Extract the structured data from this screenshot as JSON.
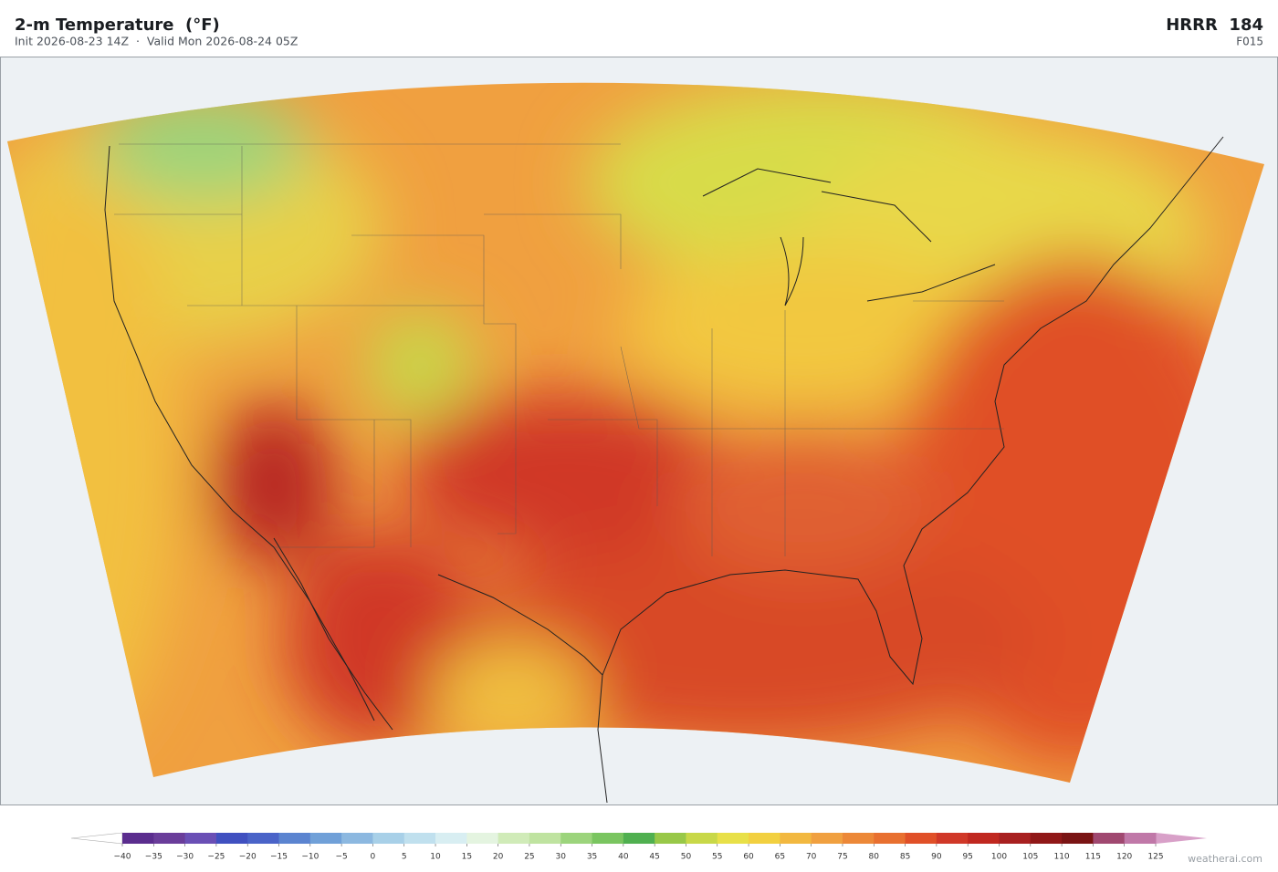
{
  "header": {
    "title": "2-m Temperature  (°F)",
    "subtitle": "Init 2026-08-23 14Z  ·  Valid Mon 2026-08-24 05Z",
    "model": "HRRR  184",
    "forecast_hour": "F015"
  },
  "colorbar": {
    "ticks": [
      {
        "value": -40,
        "label": "−40"
      },
      {
        "value": -35,
        "label": "−35"
      },
      {
        "value": -30,
        "label": "−30"
      },
      {
        "value": -25,
        "label": "−25"
      },
      {
        "value": -20,
        "label": "−20"
      },
      {
        "value": -15,
        "label": "−15"
      },
      {
        "value": -10,
        "label": "−10"
      },
      {
        "value": -5,
        "label": "−5"
      },
      0,
      5,
      10,
      15,
      20,
      25,
      30,
      35,
      40,
      45,
      50,
      55,
      60,
      65,
      70,
      75,
      80,
      85,
      90,
      95,
      100,
      105,
      110,
      115,
      120,
      125
    ],
    "colors": [
      "#5b2d8e",
      "#6a3d9a",
      "#6a4fb5",
      "#4050c0",
      "#4a63c8",
      "#5b84d0",
      "#70a0d8",
      "#8cb8e0",
      "#a8d0e8",
      "#c0e0ee",
      "#d8eef2",
      "#e4f4e0",
      "#d0ebb8",
      "#bfe3a0",
      "#9cd47c",
      "#7ac560",
      "#50b050",
      "#98c848",
      "#c8d848",
      "#e8e048",
      "#f2d040",
      "#f2b840",
      "#f0a040",
      "#ec8838",
      "#e87030",
      "#e05028",
      "#d03828",
      "#c02820",
      "#a82020",
      "#901818",
      "#7a1414",
      "#a04870",
      "#c078a8",
      "#d8a0c8"
    ],
    "under_color": "#ffffff",
    "over_color": "#d8a0c8"
  },
  "credit": "weatherai.com"
}
